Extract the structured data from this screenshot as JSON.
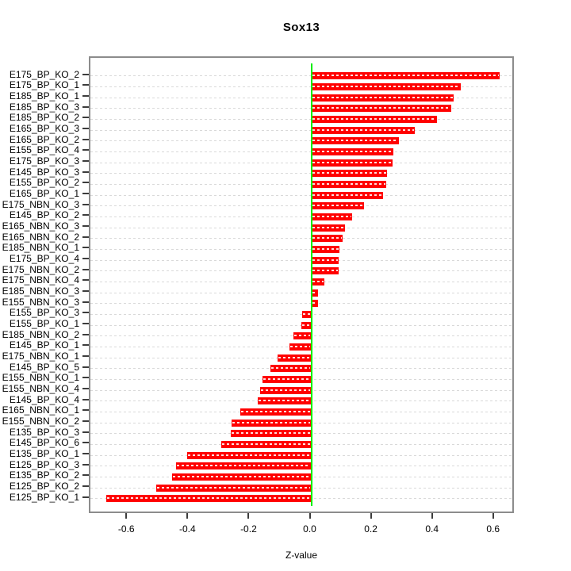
{
  "title": "Sox13",
  "xlabel": "Z-value",
  "axis": {
    "tick_values": [
      -0.6,
      -0.4,
      -0.2,
      0.0,
      0.2,
      0.4,
      0.6
    ],
    "tick_labels": [
      "-0.6",
      "-0.4",
      "-0.2",
      "0.0",
      "0.2",
      "0.4",
      "0.6"
    ]
  },
  "colors": {
    "bar": "#ff0000",
    "bar_dash": "#ffffff",
    "zero_line": "#00ee00",
    "grid": "#d9d9d9",
    "box": "#8c8c8c",
    "text": "#000000"
  },
  "chart_data": {
    "type": "bar",
    "orientation": "horizontal",
    "title": "Sox13",
    "xlabel": "Z-value",
    "xlim": [
      -0.72,
      0.67
    ],
    "grid": "dashed-horizontal-per-row",
    "zero_reference_line": 0.0,
    "categories": [
      "E175_BP_KO_2",
      "E175_BP_KO_1",
      "E185_BP_KO_1",
      "E185_BP_KO_3",
      "E185_BP_KO_2",
      "E165_BP_KO_3",
      "E165_BP_KO_2",
      "E155_BP_KO_4",
      "E175_BP_KO_3",
      "E145_BP_KO_3",
      "E155_BP_KO_2",
      "E165_BP_KO_1",
      "E175_NBN_KO_3",
      "E145_BP_KO_2",
      "E165_NBN_KO_3",
      "E165_NBN_KO_2",
      "E185_NBN_KO_1",
      "E175_BP_KO_4",
      "E175_NBN_KO_2",
      "E175_NBN_KO_4",
      "E185_NBN_KO_3",
      "E155_NBN_KO_3",
      "E155_BP_KO_3",
      "E155_BP_KO_1",
      "E185_NBN_KO_2",
      "E145_BP_KO_1",
      "E175_NBN_KO_1",
      "E145_BP_KO_5",
      "E155_NBN_KO_1",
      "E155_NBN_KO_4",
      "E145_BP_KO_4",
      "E165_NBN_KO_1",
      "E155_NBN_KO_2",
      "E135_BP_KO_3",
      "E145_BP_KO_6",
      "E135_BP_KO_1",
      "E125_BP_KO_3",
      "E135_BP_KO_2",
      "E125_BP_KO_2",
      "E125_BP_KO_1"
    ],
    "values": [
      0.617,
      0.49,
      0.467,
      0.457,
      0.411,
      0.338,
      0.286,
      0.268,
      0.265,
      0.249,
      0.245,
      0.234,
      0.173,
      0.134,
      0.11,
      0.103,
      0.092,
      0.09,
      0.089,
      0.042,
      0.023,
      0.022,
      -0.03,
      -0.032,
      -0.059,
      -0.071,
      -0.11,
      -0.134,
      -0.159,
      -0.167,
      -0.176,
      -0.232,
      -0.261,
      -0.263,
      -0.294,
      -0.407,
      -0.443,
      -0.455,
      -0.507,
      -0.671
    ]
  }
}
